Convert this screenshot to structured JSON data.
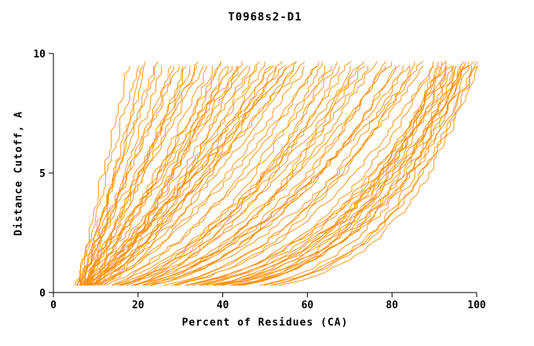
{
  "title": "T0968s2-D1",
  "chart_data": {
    "type": "line",
    "title": "T0968s2-D1",
    "xlabel": "Percent of Residues (CA)",
    "ylabel": "Distance Cutoff, A",
    "xlim": [
      0,
      100
    ],
    "ylim": [
      0,
      10
    ],
    "x_ticks": [
      0,
      20,
      40,
      60,
      80,
      100
    ],
    "y_ticks": [
      0,
      5,
      10
    ],
    "grid": false,
    "legend": "none",
    "line_color": "#ff8c00",
    "axis_color": "#000000",
    "curve_y_top": 9.7,
    "curve_x_origin": 5,
    "curves_note": "each curve = [x_start_percent, x_at_top_percent, shape_exponent] for x = x0+(xtop-x0)*(y/ytop)^(1/p)",
    "curves": [
      [
        5,
        18,
        1.0
      ],
      [
        5.5,
        20,
        0.9
      ],
      [
        6,
        22,
        1.1
      ],
      [
        5,
        24,
        0.95
      ],
      [
        6.5,
        26,
        1.05
      ],
      [
        5.2,
        28,
        1.0
      ],
      [
        6,
        30,
        0.9
      ],
      [
        5.8,
        32,
        1.1
      ],
      [
        5,
        21,
        1.2
      ],
      [
        6.2,
        25,
        0.85
      ],
      [
        5.5,
        29,
        1.0
      ],
      [
        6,
        31,
        1.15
      ],
      [
        5,
        34,
        1.2
      ],
      [
        6,
        36,
        1.0
      ],
      [
        5.5,
        38,
        1.3
      ],
      [
        6.5,
        40,
        1.1
      ],
      [
        5,
        42,
        1.4
      ],
      [
        6,
        44,
        1.2
      ],
      [
        5.5,
        46,
        1.0
      ],
      [
        6.5,
        48,
        1.3
      ],
      [
        5,
        50,
        1.5
      ],
      [
        6,
        52,
        1.2
      ],
      [
        5.5,
        54,
        1.4
      ],
      [
        6.5,
        56,
        1.1
      ],
      [
        5,
        58,
        1.3
      ],
      [
        6,
        60,
        1.5
      ],
      [
        5.2,
        35,
        0.9
      ],
      [
        6.3,
        39,
        1.6
      ],
      [
        5.6,
        43,
        1.0
      ],
      [
        6.1,
        47,
        1.2
      ],
      [
        5.4,
        51,
        1.6
      ],
      [
        6.6,
        55,
        1.0
      ],
      [
        5.3,
        59,
        1.4
      ],
      [
        6.4,
        37,
        1.2
      ],
      [
        5.7,
        41,
        1.5
      ],
      [
        6.2,
        45,
        0.95
      ],
      [
        5.8,
        49,
        1.3
      ],
      [
        6.0,
        53,
        1.6
      ],
      [
        5.1,
        57,
        1.1
      ],
      [
        6.5,
        33,
        1.0
      ],
      [
        5.9,
        44,
        1.7
      ],
      [
        6.3,
        58,
        1.2
      ],
      [
        5,
        62,
        1.8
      ],
      [
        6,
        64,
        2.0
      ],
      [
        5.5,
        66,
        1.6
      ],
      [
        6.5,
        68,
        2.2
      ],
      [
        5,
        70,
        1.9
      ],
      [
        6,
        72,
        2.4
      ],
      [
        5.5,
        74,
        1.7
      ],
      [
        6.5,
        76,
        2.1
      ],
      [
        5,
        78,
        2.5
      ],
      [
        6,
        80,
        1.8
      ],
      [
        5.5,
        82,
        2.3
      ],
      [
        6.5,
        84,
        2.0
      ],
      [
        5,
        86,
        2.6
      ],
      [
        6,
        88,
        2.2
      ],
      [
        5.3,
        63,
        1.5
      ],
      [
        6.2,
        67,
        2.0
      ],
      [
        5.6,
        71,
        2.5
      ],
      [
        6.1,
        75,
        1.8
      ],
      [
        5.4,
        79,
        2.2
      ],
      [
        6.4,
        83,
        2.7
      ],
      [
        5.2,
        87,
        1.9
      ],
      [
        5.8,
        65,
        2.3
      ],
      [
        6.3,
        73,
        1.6
      ],
      [
        5.7,
        81,
        2.4
      ],
      [
        6.0,
        85,
        2.8
      ],
      [
        5,
        90,
        3.0
      ],
      [
        6,
        92,
        3.5
      ],
      [
        5.5,
        94,
        2.8
      ],
      [
        6.5,
        96,
        4.0
      ],
      [
        5,
        98,
        3.2
      ],
      [
        6,
        100,
        4.5
      ],
      [
        5.5,
        91,
        3.8
      ],
      [
        6.5,
        93,
        3.0
      ],
      [
        5,
        95,
        4.2
      ],
      [
        6,
        97,
        3.4
      ],
      [
        5.5,
        99,
        4.8
      ],
      [
        6.2,
        90,
        2.6
      ],
      [
        5.4,
        92,
        4.0
      ],
      [
        6.1,
        94,
        3.3
      ],
      [
        5.6,
        96,
        4.6
      ],
      [
        5.2,
        98,
        2.9
      ],
      [
        6.3,
        100,
        3.6
      ],
      [
        5.8,
        91,
        4.4
      ],
      [
        5.3,
        95,
        3.1
      ],
      [
        6.4,
        97,
        4.9
      ],
      [
        5.7,
        99,
        3.5
      ],
      [
        5.1,
        93,
        4.1
      ],
      [
        6.0,
        100,
        5.0
      ],
      [
        5.9,
        96,
        2.7
      ],
      [
        5.5,
        98,
        3.9
      ]
    ]
  }
}
